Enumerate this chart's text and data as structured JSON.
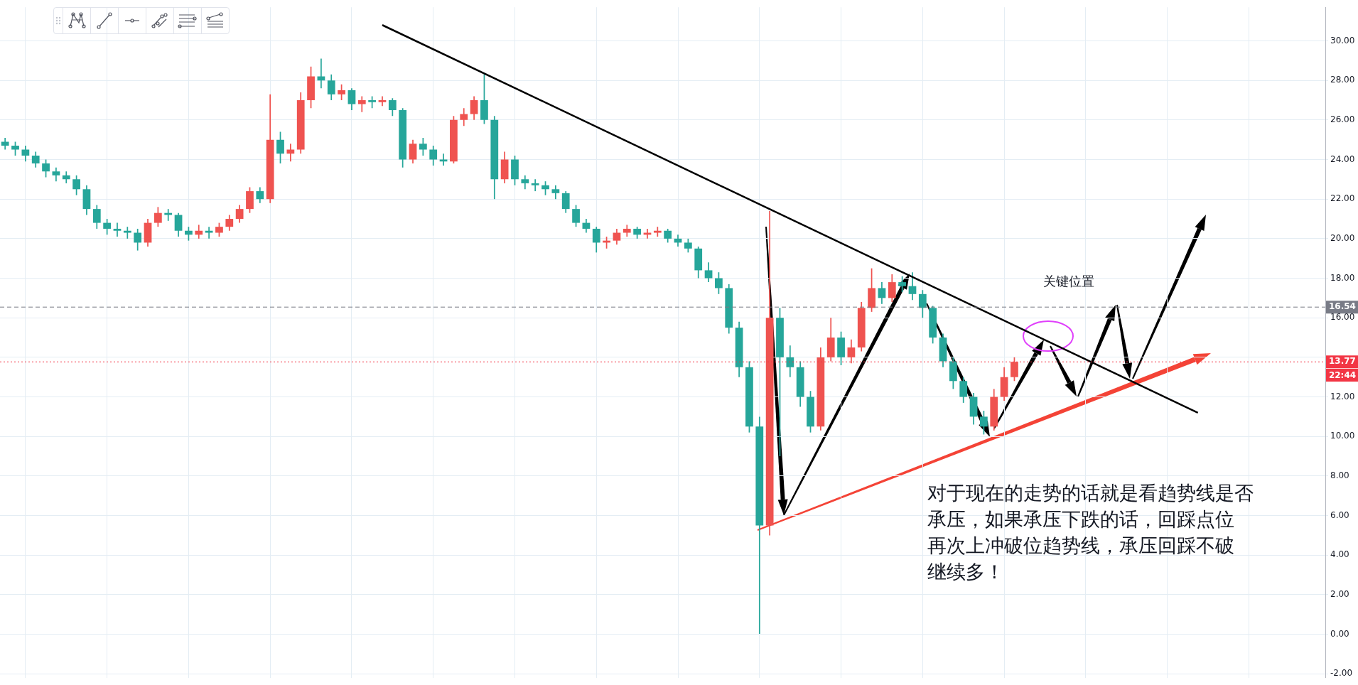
{
  "chart_data": {
    "type": "candlestick",
    "categories": [
      null,
      null,
      null,
      null,
      null,
      null,
      null,
      null,
      null,
      null,
      null,
      null,
      null,
      null,
      null,
      null,
      null,
      null,
      null,
      null,
      null,
      null,
      null,
      null,
      null,
      null,
      null,
      null,
      null,
      null,
      null,
      null,
      null,
      null,
      null,
      null,
      null,
      null,
      null,
      null,
      null,
      null,
      null,
      null,
      null,
      null,
      null,
      null,
      null,
      null,
      null,
      null,
      null,
      null,
      null,
      null,
      null,
      null,
      null,
      null,
      null,
      null,
      null,
      null,
      null,
      null,
      null,
      null,
      null,
      null,
      null,
      null,
      null,
      null,
      null,
      null,
      null,
      null,
      null,
      null,
      null,
      null,
      null,
      null,
      null,
      null,
      null,
      null,
      null,
      null,
      null,
      null,
      null,
      null,
      null,
      null,
      null,
      null,
      null,
      null,
      null,
      null,
      null,
      null,
      null,
      null,
      null,
      null,
      null,
      null,
      null,
      null,
      null,
      null,
      null,
      null,
      null,
      null,
      null,
      null,
      null,
      null,
      null,
      null,
      null,
      null,
      null,
      null,
      null,
      null
    ],
    "ohlc": [
      [
        24.9,
        25.1,
        24.5,
        24.7
      ],
      [
        24.7,
        24.9,
        24.2,
        24.5
      ],
      [
        24.5,
        24.7,
        23.9,
        24.2
      ],
      [
        24.2,
        24.4,
        23.6,
        23.8
      ],
      [
        23.8,
        24.0,
        23.1,
        23.4
      ],
      [
        23.4,
        23.6,
        22.9,
        23.2
      ],
      [
        23.2,
        23.4,
        22.8,
        23.0
      ],
      [
        23.0,
        23.2,
        22.2,
        22.5
      ],
      [
        22.5,
        22.7,
        21.2,
        21.5
      ],
      [
        21.5,
        21.7,
        20.5,
        20.8
      ],
      [
        20.8,
        21.0,
        20.2,
        20.5
      ],
      [
        20.5,
        20.8,
        20.1,
        20.4
      ],
      [
        20.4,
        20.6,
        20.0,
        20.3
      ],
      [
        20.3,
        20.5,
        19.4,
        19.8
      ],
      [
        19.8,
        21.0,
        19.6,
        20.8
      ],
      [
        20.8,
        21.6,
        20.6,
        21.3
      ],
      [
        21.3,
        21.5,
        20.9,
        21.2
      ],
      [
        21.2,
        21.3,
        20.1,
        20.4
      ],
      [
        20.4,
        20.6,
        19.9,
        20.2
      ],
      [
        20.2,
        20.7,
        20.0,
        20.4
      ],
      [
        20.4,
        20.6,
        20.0,
        20.3
      ],
      [
        20.3,
        20.8,
        20.1,
        20.6
      ],
      [
        20.6,
        21.2,
        20.4,
        21.0
      ],
      [
        21.0,
        21.7,
        20.8,
        21.5
      ],
      [
        21.5,
        22.6,
        21.3,
        22.4
      ],
      [
        22.4,
        22.6,
        21.8,
        22.0
      ],
      [
        22.0,
        27.3,
        21.8,
        25.0
      ],
      [
        25.0,
        25.4,
        23.8,
        24.3
      ],
      [
        24.3,
        24.8,
        23.9,
        24.5
      ],
      [
        24.5,
        27.4,
        24.3,
        27.0
      ],
      [
        27.0,
        28.7,
        26.6,
        28.2
      ],
      [
        28.2,
        29.1,
        27.6,
        28.0
      ],
      [
        28.0,
        28.3,
        27.0,
        27.3
      ],
      [
        27.3,
        27.8,
        27.0,
        27.5
      ],
      [
        27.5,
        27.6,
        26.5,
        26.8
      ],
      [
        26.8,
        27.2,
        26.4,
        27.0
      ],
      [
        27.0,
        27.2,
        26.6,
        26.9
      ],
      [
        26.9,
        27.2,
        26.7,
        27.0
      ],
      [
        27.0,
        27.1,
        26.2,
        26.5
      ],
      [
        26.5,
        26.6,
        23.6,
        24.0
      ],
      [
        24.0,
        25.0,
        23.8,
        24.8
      ],
      [
        24.8,
        25.1,
        24.2,
        24.5
      ],
      [
        24.5,
        24.7,
        23.7,
        24.0
      ],
      [
        24.0,
        24.3,
        23.7,
        23.9
      ],
      [
        23.9,
        26.2,
        23.8,
        26.0
      ],
      [
        26.0,
        26.6,
        25.7,
        26.3
      ],
      [
        26.3,
        27.2,
        26.0,
        27.0
      ],
      [
        27.0,
        28.3,
        25.8,
        26.0
      ],
      [
        26.0,
        26.2,
        22.0,
        23.0
      ],
      [
        23.0,
        24.4,
        22.8,
        24.0
      ],
      [
        24.0,
        24.2,
        22.7,
        23.0
      ],
      [
        23.0,
        23.2,
        22.5,
        22.8
      ],
      [
        22.8,
        23.0,
        22.4,
        22.7
      ],
      [
        22.7,
        22.9,
        22.2,
        22.5
      ],
      [
        22.5,
        22.7,
        22.0,
        22.3
      ],
      [
        22.3,
        22.4,
        21.3,
        21.5
      ],
      [
        21.5,
        21.7,
        20.6,
        20.8
      ],
      [
        20.8,
        21.0,
        20.3,
        20.5
      ],
      [
        20.5,
        20.6,
        19.3,
        19.8
      ],
      [
        19.8,
        20.1,
        19.5,
        19.9
      ],
      [
        19.9,
        20.5,
        19.7,
        20.3
      ],
      [
        20.3,
        20.7,
        20.1,
        20.5
      ],
      [
        20.5,
        20.6,
        20.0,
        20.2
      ],
      [
        20.2,
        20.5,
        20.0,
        20.3
      ],
      [
        20.3,
        20.6,
        20.1,
        20.4
      ],
      [
        20.4,
        20.5,
        19.8,
        20.0
      ],
      [
        20.0,
        20.2,
        19.6,
        19.8
      ],
      [
        19.8,
        20.0,
        19.3,
        19.5
      ],
      [
        19.5,
        19.6,
        18.0,
        18.4
      ],
      [
        18.4,
        18.8,
        17.8,
        18.0
      ],
      [
        18.0,
        18.3,
        17.2,
        17.5
      ],
      [
        17.5,
        17.7,
        15.2,
        15.5
      ],
      [
        15.5,
        15.8,
        13.0,
        13.5
      ],
      [
        13.5,
        13.8,
        10.2,
        10.5
      ],
      [
        10.5,
        11.0,
        0.0,
        5.5
      ],
      [
        5.5,
        21.4,
        5.0,
        16.0
      ],
      [
        16.0,
        16.5,
        9.0,
        14.0
      ],
      [
        14.0,
        14.6,
        13.0,
        13.5
      ],
      [
        13.5,
        13.8,
        11.5,
        12.0
      ],
      [
        12.0,
        12.3,
        10.2,
        10.5
      ],
      [
        10.5,
        14.5,
        10.3,
        14.0
      ],
      [
        14.0,
        16.0,
        13.8,
        15.0
      ],
      [
        15.0,
        15.3,
        13.6,
        14.0
      ],
      [
        14.0,
        14.9,
        13.7,
        14.5
      ],
      [
        14.5,
        16.8,
        14.3,
        16.5
      ],
      [
        16.5,
        18.5,
        16.3,
        17.5
      ],
      [
        17.5,
        17.8,
        16.7,
        17.0
      ],
      [
        17.0,
        18.2,
        16.8,
        17.8
      ],
      [
        17.8,
        18.1,
        17.3,
        17.6
      ],
      [
        17.6,
        18.3,
        16.9,
        17.2
      ],
      [
        17.2,
        17.4,
        16.0,
        16.5
      ],
      [
        16.5,
        16.6,
        14.7,
        15.0
      ],
      [
        15.0,
        15.2,
        13.5,
        13.8
      ],
      [
        13.8,
        14.0,
        12.4,
        12.8
      ],
      [
        12.8,
        13.0,
        11.7,
        12.0
      ],
      [
        12.0,
        12.2,
        10.6,
        11.0
      ],
      [
        11.0,
        11.3,
        10.1,
        10.5
      ],
      [
        10.5,
        12.4,
        10.3,
        12.0
      ],
      [
        12.0,
        13.5,
        11.8,
        13.0
      ],
      [
        13.0,
        14.0,
        12.8,
        13.77
      ],
      null,
      null,
      null,
      null,
      null,
      null,
      null,
      null,
      null,
      null,
      null,
      null,
      null,
      null,
      null,
      null,
      null,
      null,
      null,
      null,
      null,
      null,
      null,
      null,
      null,
      null,
      null,
      null,
      null,
      null
    ],
    "colors": [
      "#26a69a",
      "#26a69a",
      "#26a69a",
      "#26a69a",
      "#26a69a",
      "#26a69a",
      "#26a69a",
      "#26a69a",
      "#26a69a",
      "#26a69a",
      "#26a69a",
      "#26a69a",
      "#26a69a",
      "#26a69a",
      "#ef5350",
      "#ef5350",
      "#26a69a",
      "#26a69a",
      "#26a69a",
      "#ef5350",
      "#26a69a",
      "#ef5350",
      "#ef5350",
      "#ef5350",
      "#ef5350",
      "#26a69a",
      "#ef5350",
      "#26a69a",
      "#ef5350",
      "#ef5350",
      "#ef5350",
      "#26a69a",
      "#26a69a",
      "#ef5350",
      "#26a69a",
      "#ef5350",
      "#26a69a",
      "#ef5350",
      "#26a69a",
      "#26a69a",
      "#ef5350",
      "#26a69a",
      "#26a69a",
      "#26a69a",
      "#ef5350",
      "#ef5350",
      "#ef5350",
      "#26a69a",
      "#26a69a",
      "#ef5350",
      "#26a69a",
      "#26a69a",
      "#26a69a",
      "#26a69a",
      "#26a69a",
      "#26a69a",
      "#26a69a",
      "#26a69a",
      "#26a69a",
      "#ef5350",
      "#ef5350",
      "#ef5350",
      "#26a69a",
      "#ef5350",
      "#ef5350",
      "#26a69a",
      "#26a69a",
      "#26a69a",
      "#26a69a",
      "#26a69a",
      "#26a69a",
      "#26a69a",
      "#26a69a",
      "#26a69a",
      "#26a69a",
      "#ef5350",
      "#26a69a",
      "#26a69a",
      "#26a69a",
      "#26a69a",
      "#ef5350",
      "#ef5350",
      "#26a69a",
      "#ef5350",
      "#ef5350",
      "#ef5350",
      "#26a69a",
      "#ef5350",
      "#26a69a",
      "#26a69a",
      "#26a69a",
      "#26a69a",
      "#26a69a",
      "#26a69a",
      "#26a69a",
      "#26a69a",
      "#26a69a",
      "#ef5350",
      "#ef5350",
      "#ef5350",
      null,
      null,
      null,
      null,
      null,
      null,
      null,
      null,
      null,
      null,
      null,
      null,
      null,
      null,
      null,
      null,
      null,
      null,
      null,
      null,
      null,
      null,
      null,
      null,
      null,
      null,
      null,
      null,
      null,
      null
    ],
    "series": [
      {
        "type": "line",
        "color": "#000000",
        "values": [
          null,
          null,
          null,
          null,
          null,
          null,
          null,
          null,
          null,
          null,
          null,
          null,
          null,
          null,
          null,
          null,
          null,
          null,
          null,
          null,
          null,
          null,
          null,
          null,
          null,
          null,
          null,
          null,
          null,
          null,
          null,
          null,
          null,
          null,
          null,
          null,
          null,
          30.8,
          null,
          null,
          null,
          null,
          null,
          null,
          null,
          null,
          null,
          null,
          null,
          null,
          null,
          null,
          null,
          null,
          null,
          null,
          null,
          null,
          null,
          null,
          null,
          null,
          null,
          null,
          null,
          null,
          null,
          null,
          null,
          null,
          null,
          null,
          null,
          null,
          null,
          null,
          null,
          null,
          null,
          null,
          null,
          null,
          null,
          null,
          null,
          null,
          null,
          null,
          null,
          null,
          null,
          null,
          null,
          null,
          null,
          null,
          null,
          null,
          null,
          null,
          null,
          null,
          null,
          null,
          null,
          null,
          null,
          null,
          null,
          null,
          null,
          null,
          null,
          null,
          null,
          null,
          null,
          11.2,
          null,
          null,
          null,
          null,
          null,
          null,
          null,
          null,
          null,
          null,
          null,
          null
        ]
      }
    ],
    "ylim": [
      -2.2,
      31.7
    ],
    "yticks": [
      {
        "value": -2,
        "label": "-2.00"
      },
      {
        "value": 0,
        "label": "0.00"
      },
      {
        "value": 2,
        "label": "2.00"
      },
      {
        "value": 4,
        "label": "4.00"
      },
      {
        "value": 6,
        "label": "6.00"
      },
      {
        "value": 8,
        "label": "8.00"
      },
      {
        "value": 10,
        "label": "10.00"
      },
      {
        "value": 12,
        "label": "12.00"
      },
      {
        "value": 14,
        "label": null
      },
      {
        "value": 16,
        "label": "16.00"
      },
      {
        "value": 18,
        "label": "18.00"
      },
      {
        "value": 20,
        "label": "20.00"
      },
      {
        "value": 22,
        "label": "22.00"
      },
      {
        "value": 24,
        "label": "24.00"
      },
      {
        "value": 26,
        "label": "26.00"
      },
      {
        "value": 28,
        "label": "28.00"
      },
      {
        "value": 30,
        "label": "30.00"
      }
    ],
    "grid": true,
    "tick_labels": "y",
    "ref_lines": [
      {
        "axis": "y",
        "value": 16.54,
        "label": "16.54",
        "color": "#787b86",
        "line_style": "dashed"
      },
      {
        "axis": "y",
        "value": 13.77,
        "label": "13.77",
        "color": "#f23645",
        "line_style": "dotted"
      }
    ],
    "annotations": [
      "关键位置",
      "对于现在的走势的话就是看趋势线是否",
      "承压，如果承压下跌的话，回踩点位",
      "再次上冲破位趋势线，承压回踩不破",
      "继续多！",
      "22:44"
    ]
  }
}
